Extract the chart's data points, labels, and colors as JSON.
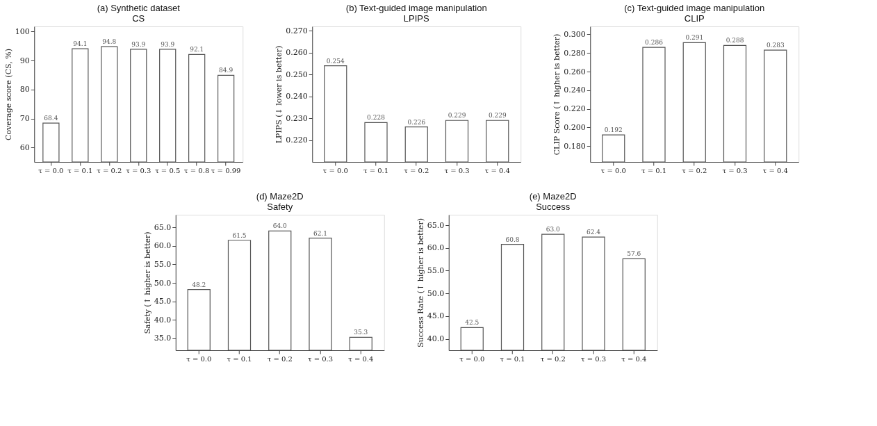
{
  "chart_data": [
    {
      "type": "bar",
      "title": "(a) Synthetic dataset\nCS",
      "ylabel": "Coverage score (CS, %)",
      "categories": [
        "τ = 0.0",
        "τ = 0.1",
        "τ = 0.2",
        "τ = 0.3",
        "τ = 0.5",
        "τ = 0.8",
        "τ = 0.99"
      ],
      "values": [
        68.4,
        94.1,
        94.8,
        93.9,
        93.9,
        92.1,
        84.9
      ],
      "color": "#ffffff",
      "ylim": [
        55,
        101.8
      ],
      "yticks": [
        60,
        70,
        80,
        90,
        100
      ],
      "data_labels": true
    },
    {
      "type": "bar",
      "title": "(b) Text-guided image manipulation\nLPIPS",
      "ylabel": "LPIPS (↓ lower is better)",
      "categories": [
        "τ = 0.0",
        "τ = 0.1",
        "τ = 0.2",
        "τ = 0.3",
        "τ = 0.4"
      ],
      "values": [
        0.254,
        0.228,
        0.226,
        0.229,
        0.229
      ],
      "color": "#ffffff",
      "ylim": [
        0.21,
        0.272
      ],
      "yticks": [
        {
          "value": 0.22,
          "label": "0.220"
        },
        {
          "value": 0.23,
          "label": "0.230"
        },
        {
          "value": 0.24,
          "label": "0.240"
        },
        {
          "value": 0.25,
          "label": "0.250"
        },
        {
          "value": 0.26,
          "label": "0.260"
        },
        {
          "value": 0.27,
          "label": "0.270"
        }
      ],
      "data_labels": true
    },
    {
      "type": "bar",
      "title": "(c) Text-guided image manipulation\nCLIP",
      "ylabel": "CLIP Score (↑ higher is better)",
      "categories": [
        "τ = 0.0",
        "τ = 0.1",
        "τ = 0.2",
        "τ = 0.3",
        "τ = 0.4"
      ],
      "values": [
        0.192,
        0.286,
        0.291,
        0.288,
        0.283
      ],
      "color": "#ffffff",
      "ylim": [
        0.163,
        0.3085
      ],
      "yticks": [
        {
          "value": 0.18,
          "label": "0.180"
        },
        {
          "value": 0.2,
          "label": "0.200"
        },
        {
          "value": 0.22,
          "label": "0.220"
        },
        {
          "value": 0.24,
          "label": "0.240"
        },
        {
          "value": 0.26,
          "label": "0.260"
        },
        {
          "value": 0.28,
          "label": "0.280"
        },
        {
          "value": 0.3,
          "label": "0.300"
        }
      ],
      "data_labels": true
    },
    {
      "type": "bar",
      "title": "(d) Maze2D\nSafety",
      "ylabel": "Safety (↑ higher is better)",
      "categories": [
        "τ = 0.0",
        "τ = 0.1",
        "τ = 0.2",
        "τ = 0.3",
        "τ = 0.4"
      ],
      "values": [
        48.2,
        61.5,
        64.0,
        62.1,
        35.3
      ],
      "value_labels": [
        "48.2",
        "61.5",
        "64.0",
        "62.1",
        "35.3"
      ],
      "color": "#ffffff",
      "ylim": [
        31.8,
        68.4
      ],
      "yticks": [
        {
          "value": 35,
          "label": "35.0"
        },
        {
          "value": 40,
          "label": "40.0"
        },
        {
          "value": 45,
          "label": "45.0"
        },
        {
          "value": 50,
          "label": "50.0"
        },
        {
          "value": 55,
          "label": "55.0"
        },
        {
          "value": 60,
          "label": "60.0"
        },
        {
          "value": 65,
          "label": "65.0"
        }
      ]
    },
    {
      "type": "bar",
      "title": "(e) Maze2D\nSuccess",
      "ylabel": "Success Rate (↑ higher is better)",
      "categories": [
        "τ = 0.0",
        "τ = 0.1",
        "τ = 0.2",
        "τ = 0.3",
        "τ = 0.4"
      ],
      "values": [
        42.5,
        60.8,
        63.0,
        62.4,
        57.6
      ],
      "value_labels": [
        "42.5",
        "60.8",
        "63.0",
        "62.4",
        "57.6"
      ],
      "color": "#ffffff",
      "ylim": [
        37.5,
        67.3
      ],
      "yticks": [
        {
          "value": 40,
          "label": "40.0"
        },
        {
          "value": 45,
          "label": "45.0"
        },
        {
          "value": 50,
          "label": "50.0"
        },
        {
          "value": 55,
          "label": "55.0"
        },
        {
          "value": 60,
          "label": "60.0"
        },
        {
          "value": 65,
          "label": "65.0"
        }
      ]
    }
  ]
}
